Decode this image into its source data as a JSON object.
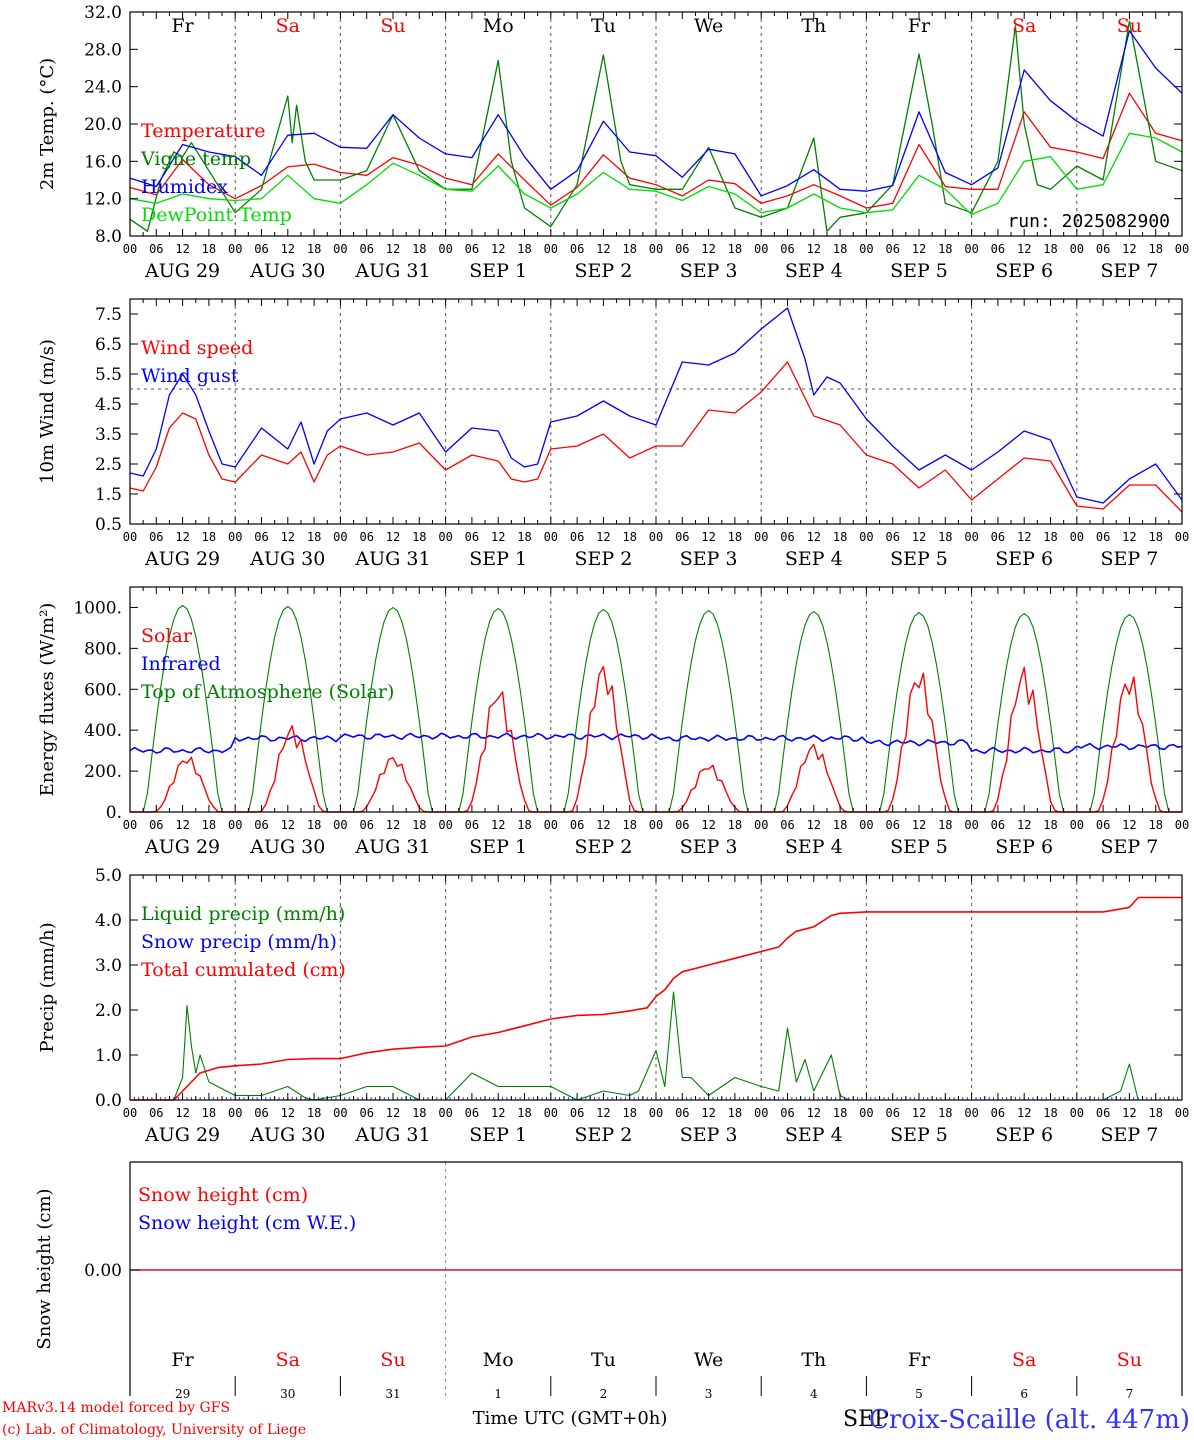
{
  "colors": {
    "red": "#ff0000",
    "blue": "#0000ff",
    "green": "#008000",
    "lime": "#00dd00",
    "grid": "#555555",
    "weekend": "#ff0000",
    "weekday": "#000000"
  },
  "days": [
    {
      "abbr": "Fr",
      "weekend": false,
      "date": "AUG 29",
      "num": "29"
    },
    {
      "abbr": "Sa",
      "weekend": true,
      "date": "AUG 30",
      "num": "30"
    },
    {
      "abbr": "Su",
      "weekend": true,
      "date": "AUG 31",
      "num": "31"
    },
    {
      "abbr": "Mo",
      "weekend": false,
      "date": "SEP  1",
      "num": "1"
    },
    {
      "abbr": "Tu",
      "weekend": false,
      "date": "SEP  2",
      "num": "2"
    },
    {
      "abbr": "We",
      "weekend": false,
      "date": "SEP  3",
      "num": "3"
    },
    {
      "abbr": "Th",
      "weekend": false,
      "date": "SEP  4",
      "num": "4"
    },
    {
      "abbr": "Fr",
      "weekend": false,
      "date": "SEP  5",
      "num": "5"
    },
    {
      "abbr": "Sa",
      "weekend": true,
      "date": "SEP  6",
      "num": "6"
    },
    {
      "abbr": "Su",
      "weekend": true,
      "date": "SEP  7",
      "num": "7"
    }
  ],
  "hour_ticks": [
    "00",
    "06",
    "12",
    "18"
  ],
  "footer": {
    "model": "MARv3.14 model forced by GFS",
    "lab": "(c) Lab. of Climatology, University of Liege",
    "xlabel": "Time UTC (GMT+0h)",
    "month_overlap": "SEP",
    "station": "Croix-Scaille (alt. 447m)"
  },
  "chart_data": [
    {
      "type": "line",
      "ylabel": "2m Temp. (°C)",
      "ylim": [
        8,
        32
      ],
      "yticks": [
        "8.0",
        "12.0",
        "16.0",
        "20.0",
        "24.0",
        "28.0",
        "32.0"
      ],
      "annotation": "run: 2025082900",
      "x": "hour from Aug 29 00 UTC",
      "series": [
        {
          "name": "Temperature",
          "color": "red",
          "x": [
            0,
            6,
            12,
            18,
            24,
            30,
            36,
            42,
            48,
            54,
            60,
            66,
            72,
            78,
            84,
            90,
            96,
            102,
            108,
            114,
            120,
            126,
            132,
            138,
            144,
            150,
            156,
            162,
            168,
            174,
            180,
            186,
            192,
            198,
            204,
            210,
            216,
            222,
            228,
            234,
            240
          ],
          "values": [
            13.2,
            12.4,
            16.2,
            13.5,
            12.0,
            13.4,
            15.4,
            15.7,
            14.8,
            14.5,
            16.4,
            15.6,
            14.2,
            13.5,
            16.8,
            14.0,
            11.3,
            13.2,
            16.7,
            14.2,
            13.5,
            12.3,
            14.0,
            13.6,
            11.5,
            12.3,
            13.5,
            12.3,
            11.0,
            11.5,
            17.8,
            13.3,
            13.0,
            13.0,
            21.3,
            17.5,
            17.0,
            16.3,
            23.3,
            19.0,
            18.2
          ]
        },
        {
          "name": "Vigne temp",
          "color": "green",
          "x": [
            0,
            4,
            7,
            10,
            12,
            14,
            18,
            24,
            30,
            36,
            37,
            38,
            40,
            42,
            48,
            54,
            60,
            66,
            72,
            78,
            84,
            87,
            90,
            96,
            102,
            108,
            112,
            114,
            120,
            126,
            132,
            138,
            144,
            150,
            156,
            159,
            162,
            168,
            174,
            180,
            183,
            186,
            192,
            198,
            202,
            204,
            207,
            210,
            216,
            222,
            228,
            234,
            240
          ],
          "values": [
            9.8,
            8.5,
            14.0,
            17.0,
            16.5,
            18.0,
            15.0,
            10.5,
            13.0,
            23.0,
            18.0,
            22.0,
            16.0,
            14.0,
            14.0,
            15.0,
            21.0,
            15.0,
            13.0,
            13.0,
            26.8,
            16.0,
            11.0,
            9.0,
            13.5,
            27.4,
            16.0,
            13.5,
            13.0,
            13.0,
            17.5,
            11.0,
            10.0,
            11.0,
            18.5,
            8.5,
            10.0,
            10.5,
            13.5,
            27.5,
            20.0,
            11.5,
            10.5,
            16.0,
            30.5,
            20.0,
            13.5,
            13.0,
            15.5,
            14.0,
            31.0,
            16.0,
            15.0
          ]
        },
        {
          "name": "Humidex",
          "color": "blue",
          "x": [
            0,
            6,
            12,
            18,
            24,
            30,
            36,
            42,
            48,
            54,
            60,
            66,
            72,
            78,
            84,
            90,
            96,
            102,
            108,
            114,
            120,
            126,
            132,
            138,
            144,
            150,
            156,
            162,
            168,
            174,
            180,
            186,
            192,
            198,
            204,
            210,
            216,
            222,
            228,
            234,
            240
          ],
          "values": [
            14.2,
            13.3,
            17.8,
            17.0,
            16.5,
            14.5,
            18.8,
            19.0,
            17.5,
            17.4,
            21.0,
            18.5,
            16.8,
            16.4,
            21.0,
            16.5,
            13.0,
            15.0,
            20.3,
            17.0,
            16.6,
            14.3,
            17.3,
            16.8,
            12.3,
            13.4,
            15.1,
            13.0,
            12.8,
            13.4,
            21.3,
            14.8,
            13.5,
            15.3,
            25.8,
            22.5,
            20.3,
            18.7,
            30.0,
            26.0,
            23.3
          ]
        },
        {
          "name": "DewPoint Temp",
          "color": "lime",
          "x": [
            0,
            6,
            12,
            18,
            24,
            30,
            36,
            42,
            48,
            54,
            60,
            66,
            72,
            78,
            84,
            90,
            96,
            102,
            108,
            114,
            120,
            126,
            132,
            138,
            144,
            150,
            156,
            162,
            168,
            174,
            180,
            186,
            192,
            198,
            204,
            210,
            216,
            222,
            228,
            234,
            240
          ],
          "values": [
            12.0,
            11.5,
            12.5,
            12.0,
            11.8,
            12.0,
            14.5,
            12.0,
            11.5,
            13.5,
            15.8,
            14.5,
            13.0,
            12.8,
            15.5,
            12.5,
            11.0,
            12.5,
            14.8,
            13.0,
            12.8,
            11.8,
            13.3,
            12.5,
            10.5,
            11.0,
            12.5,
            11.0,
            10.5,
            10.8,
            14.5,
            13.0,
            10.3,
            11.5,
            16.0,
            16.5,
            13.0,
            13.5,
            19.0,
            18.5,
            17.0
          ]
        }
      ],
      "legend": [
        "Temperature",
        "Vigne temp",
        "Humidex",
        "DewPoint Temp"
      ]
    },
    {
      "type": "line",
      "ylabel": "10m Wind (m/s)",
      "ylim": [
        0.5,
        8.0
      ],
      "yticks": [
        "0.5",
        "1.5",
        "2.5",
        "3.5",
        "4.5",
        "5.5",
        "6.5",
        "7.5"
      ],
      "ref_line": 5.0,
      "series": [
        {
          "name": "Wind speed",
          "color": "red",
          "x": [
            0,
            3,
            6,
            9,
            12,
            15,
            18,
            21,
            24,
            30,
            36,
            39,
            42,
            45,
            48,
            54,
            60,
            66,
            72,
            78,
            84,
            87,
            90,
            93,
            96,
            102,
            108,
            114,
            120,
            126,
            132,
            138,
            144,
            150,
            156,
            162,
            168,
            174,
            180,
            186,
            192,
            198,
            204,
            210,
            216,
            222,
            228,
            234,
            240
          ],
          "values": [
            1.7,
            1.6,
            2.4,
            3.7,
            4.2,
            4.0,
            2.8,
            2.0,
            1.9,
            2.8,
            2.5,
            2.9,
            1.9,
            2.8,
            3.1,
            2.8,
            2.9,
            3.2,
            2.3,
            2.8,
            2.6,
            2.0,
            1.9,
            2.0,
            3.0,
            3.1,
            3.5,
            2.7,
            3.1,
            3.1,
            4.3,
            4.2,
            4.9,
            5.9,
            4.1,
            3.8,
            2.8,
            2.5,
            1.7,
            2.3,
            1.3,
            2.0,
            2.7,
            2.6,
            1.1,
            1.0,
            1.8,
            1.8,
            0.9
          ]
        },
        {
          "name": "Wind gust",
          "color": "blue",
          "x": [
            0,
            3,
            6,
            9,
            12,
            15,
            18,
            21,
            24,
            30,
            36,
            39,
            42,
            45,
            48,
            54,
            60,
            66,
            72,
            78,
            84,
            87,
            90,
            93,
            96,
            102,
            108,
            114,
            120,
            126,
            132,
            138,
            144,
            150,
            154,
            156,
            159,
            162,
            168,
            174,
            180,
            186,
            192,
            198,
            204,
            210,
            216,
            222,
            228,
            234,
            240
          ],
          "values": [
            2.2,
            2.1,
            3.0,
            4.8,
            5.5,
            4.8,
            3.6,
            2.5,
            2.4,
            3.7,
            3.0,
            3.9,
            2.5,
            3.6,
            4.0,
            4.2,
            3.8,
            4.2,
            2.9,
            3.7,
            3.6,
            2.7,
            2.4,
            2.5,
            3.9,
            4.1,
            4.6,
            4.1,
            3.8,
            5.9,
            5.8,
            6.2,
            7.0,
            7.7,
            6.0,
            4.8,
            5.4,
            5.2,
            4.0,
            3.1,
            2.3,
            2.8,
            2.3,
            2.9,
            3.6,
            3.3,
            1.4,
            1.2,
            2.0,
            2.5,
            1.3
          ]
        }
      ],
      "legend": [
        "Wind speed",
        "Wind gust"
      ]
    },
    {
      "type": "line",
      "ylabel": "Energy fluxes (W/m²)",
      "ylim": [
        0,
        1100
      ],
      "yticks": [
        "0.",
        "200.",
        "400.",
        "600.",
        "800.",
        "1000."
      ],
      "series": [
        {
          "name": "Solar",
          "color": "red",
          "peaks": [
            [
              13,
              280
            ],
            [
              37,
              430
            ],
            [
              60,
              280
            ],
            [
              84,
              620
            ],
            [
              108,
              740
            ],
            [
              132,
              240
            ],
            [
              156,
              340
            ],
            [
              180,
              710
            ],
            [
              204,
              720
            ],
            [
              228,
              690
            ]
          ]
        },
        {
          "name": "Infrared",
          "color": "blue",
          "base": [
            300,
            360,
            370,
            370,
            370,
            360,
            360,
            340,
            300,
            320
          ]
        },
        {
          "name": "Top of Atmosphere (Solar)",
          "color": "green",
          "peaks": [
            [
              12,
              1010
            ],
            [
              36,
              1005
            ],
            [
              60,
              1000
            ],
            [
              84,
              995
            ],
            [
              108,
              990
            ],
            [
              132,
              985
            ],
            [
              156,
              980
            ],
            [
              180,
              975
            ],
            [
              204,
              970
            ],
            [
              228,
              965
            ]
          ]
        }
      ],
      "legend": [
        "Solar",
        "Infrared",
        "Top of Atmosphere (Solar)"
      ]
    },
    {
      "type": "line",
      "ylabel": "Precip (mm/h)",
      "ylim": [
        0,
        5.0
      ],
      "yticks": [
        "0.0",
        "1.0",
        "2.0",
        "3.0",
        "4.0",
        "5.0"
      ],
      "series": [
        {
          "name": "Liquid precip (mm/h)",
          "color": "green",
          "x": [
            0,
            10,
            12,
            13,
            14,
            15,
            16,
            18,
            24,
            30,
            36,
            40,
            42,
            48,
            54,
            60,
            66,
            72,
            78,
            84,
            90,
            96,
            102,
            108,
            114,
            116,
            120,
            122,
            124,
            126,
            128,
            130,
            132,
            138,
            144,
            148,
            150,
            152,
            154,
            156,
            160,
            162,
            164,
            168,
            180,
            216,
            222,
            226,
            228,
            230,
            240
          ],
          "values": [
            0,
            0,
            0.5,
            2.1,
            1.2,
            0.6,
            1.0,
            0.4,
            0.1,
            0.1,
            0.3,
            0.05,
            0.0,
            0.1,
            0.3,
            0.3,
            0.0,
            0.0,
            0.6,
            0.3,
            0.3,
            0.3,
            0.0,
            0.2,
            0.1,
            0.2,
            1.1,
            0.3,
            2.4,
            0.5,
            0.5,
            0.3,
            0.1,
            0.5,
            0.3,
            0.2,
            1.6,
            0.4,
            0.9,
            0.2,
            1.0,
            0.1,
            0.0,
            0.0,
            0.0,
            0.0,
            0.0,
            0.2,
            0.8,
            0.0,
            0.0
          ]
        },
        {
          "name": "Snow precip (mm/h)",
          "color": "blue",
          "x": [
            0,
            240
          ],
          "values": [
            0,
            0
          ]
        },
        {
          "name": "Total cumulated (cm)",
          "color": "red",
          "x": [
            0,
            10,
            13,
            16,
            20,
            24,
            30,
            36,
            42,
            48,
            54,
            60,
            66,
            72,
            78,
            84,
            90,
            96,
            102,
            108,
            114,
            118,
            120,
            122,
            124,
            126,
            132,
            138,
            144,
            148,
            150,
            152,
            156,
            160,
            162,
            168,
            180,
            216,
            222,
            228,
            230,
            240
          ],
          "values": [
            0,
            0,
            0.3,
            0.6,
            0.72,
            0.76,
            0.8,
            0.9,
            0.92,
            0.92,
            1.05,
            1.13,
            1.17,
            1.2,
            1.4,
            1.5,
            1.65,
            1.8,
            1.88,
            1.9,
            1.98,
            2.05,
            2.3,
            2.45,
            2.7,
            2.85,
            3.0,
            3.15,
            3.3,
            3.4,
            3.6,
            3.75,
            3.85,
            4.1,
            4.15,
            4.18,
            4.18,
            4.18,
            4.18,
            4.28,
            4.5,
            4.5
          ]
        }
      ],
      "legend": [
        "Liquid precip (mm/h)",
        "Snow precip (mm/h)",
        "Total cumulated (cm)"
      ]
    },
    {
      "type": "line",
      "ylabel": "Snow height (cm)",
      "yticks": [
        "0.00"
      ],
      "series": [
        {
          "name": "Snow height (cm)",
          "color": "red",
          "x": [
            0,
            240
          ],
          "values": [
            0,
            0
          ]
        },
        {
          "name": "Snow height (cm W.E.)",
          "color": "blue",
          "x": [
            0,
            240
          ],
          "values": [
            0,
            0
          ]
        }
      ],
      "legend": [
        "Snow height (cm)",
        "Snow height (cm W.E.)"
      ]
    }
  ]
}
